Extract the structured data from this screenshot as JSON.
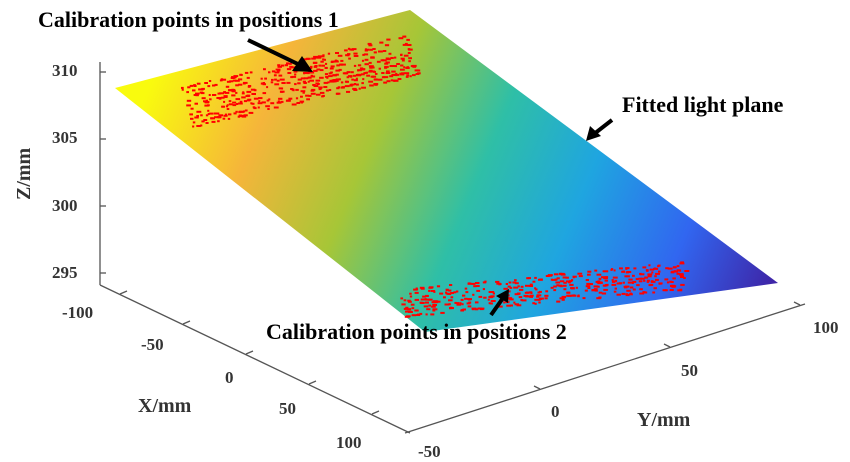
{
  "chart_data": {
    "type": "surface-3d",
    "xlabel": "X/mm",
    "ylabel": "Y/mm",
    "zlabel": "Z/mm",
    "x_ticks": [
      "-100",
      "-50",
      "0",
      "50",
      "100"
    ],
    "y_ticks": [
      "-50",
      "0",
      "50",
      "100"
    ],
    "z_ticks": [
      "295",
      "300",
      "305",
      "310"
    ],
    "zlim": [
      295,
      310
    ],
    "colormap": "parula",
    "colors": {
      "high": "#f9fb0e",
      "mid": "#17b8c6",
      "low": "#3e26a8",
      "points": "#ff0000"
    },
    "series": [
      {
        "name": "Fitted light plane",
        "kind": "plane"
      },
      {
        "name": "Calibration points in positions 1",
        "kind": "scatter"
      },
      {
        "name": "Calibration points in positions 2",
        "kind": "scatter"
      }
    ],
    "annotations": [
      "Calibration points in positions 1",
      "Fitted light plane",
      "Calibration points in positions 2"
    ]
  }
}
